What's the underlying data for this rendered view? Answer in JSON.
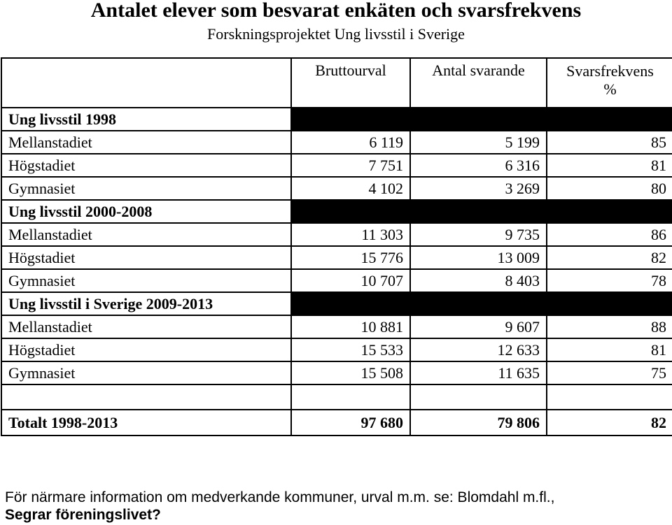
{
  "title": "Antalet elever som besvarat enkäten och svarsfrekvens",
  "subtitle": "Forskningsprojektet Ung livsstil i Sverige",
  "columns": {
    "bruttourval": "Bruttourval",
    "antal_svarande": "Antal svarande",
    "svarsfrekvens_line1": "Svarsfrekvens",
    "svarsfrekvens_line2": "%"
  },
  "sections": [
    {
      "title": "Ung livsstil 1998",
      "rows": [
        {
          "label": "Mellanstadiet",
          "bruttourval": "6 119",
          "antal": "5 199",
          "frekvens": "85"
        },
        {
          "label": "Högstadiet",
          "bruttourval": "7 751",
          "antal": "6 316",
          "frekvens": "81"
        },
        {
          "label": "Gymnasiet",
          "bruttourval": "4 102",
          "antal": "3 269",
          "frekvens": "80"
        }
      ]
    },
    {
      "title": "Ung livsstil 2000-2008",
      "rows": [
        {
          "label": "Mellanstadiet",
          "bruttourval": "11 303",
          "antal": "9 735",
          "frekvens": "86"
        },
        {
          "label": "Högstadiet",
          "bruttourval": "15 776",
          "antal": "13 009",
          "frekvens": "82"
        },
        {
          "label": "Gymnasiet",
          "bruttourval": "10 707",
          "antal": "8 403",
          "frekvens": "78"
        }
      ]
    },
    {
      "title": "Ung livsstil i Sverige 2009-2013",
      "rows": [
        {
          "label": "Mellanstadiet",
          "bruttourval": "10 881",
          "antal": "9 607",
          "frekvens": "88"
        },
        {
          "label": "Högstadiet",
          "bruttourval": "15 533",
          "antal": "12 633",
          "frekvens": "81"
        },
        {
          "label": "Gymnasiet",
          "bruttourval": "15 508",
          "antal": "11 635",
          "frekvens": "75"
        }
      ]
    }
  ],
  "total": {
    "label": "Totalt 1998-2013",
    "bruttourval": "97 680",
    "antal": "79 806",
    "frekvens": "82"
  },
  "footnote": {
    "line1": "För närmare information om medverkande kommuner, urval m.m. se: Blomdahl m.fl.,",
    "line2": "Segrar föreningslivet?"
  }
}
